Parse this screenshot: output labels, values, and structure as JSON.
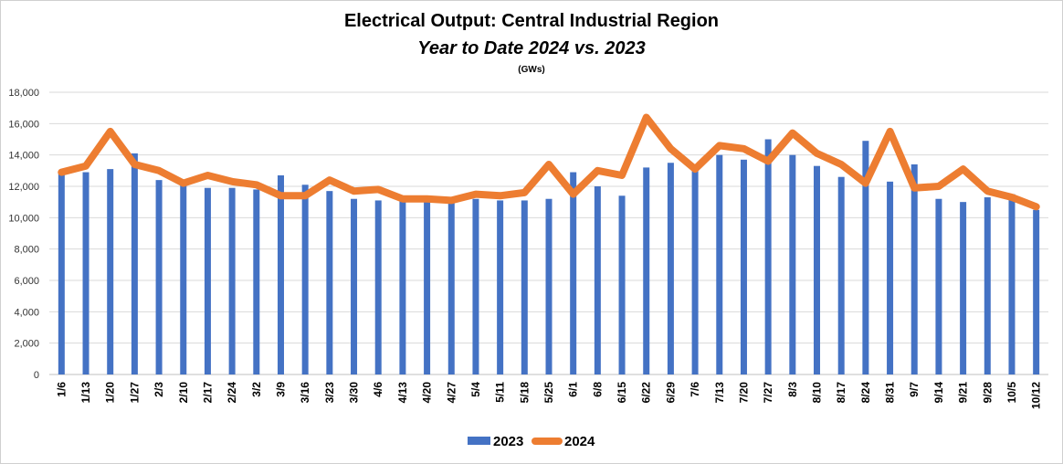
{
  "colors": {
    "bar_2023": "#4472C4",
    "line_2024": "#ED7D31",
    "grid": "#d9d9d9"
  },
  "chart_data": {
    "type": "bar",
    "title": "Electrical Output:  Central Industrial Region",
    "subtitle": "Year to Date 2024 vs. 2023",
    "unit_label": "(GWs)",
    "xlabel": "",
    "ylabel": "",
    "ylim": [
      0,
      18000
    ],
    "y_ticks": [
      0,
      2000,
      4000,
      6000,
      8000,
      10000,
      12000,
      14000,
      16000,
      18000
    ],
    "y_tick_labels": [
      "0",
      "2,000",
      "4,000",
      "6,000",
      "8,000",
      "10,000",
      "12,000",
      "14,000",
      "16,000",
      "18,000"
    ],
    "grid": true,
    "legend_position": "bottom",
    "categories": [
      "1/6",
      "1/13",
      "1/20",
      "1/27",
      "2/3",
      "2/10",
      "2/17",
      "2/24",
      "3/2",
      "3/9",
      "3/16",
      "3/23",
      "3/30",
      "4/6",
      "4/13",
      "4/20",
      "4/27",
      "5/4",
      "5/11",
      "5/18",
      "5/25",
      "6/1",
      "6/8",
      "6/15",
      "6/22",
      "6/29",
      "7/6",
      "7/13",
      "7/20",
      "7/27",
      "8/3",
      "8/10",
      "8/17",
      "8/24",
      "8/31",
      "9/7",
      "9/14",
      "9/21",
      "9/28",
      "10/5",
      "10/12"
    ],
    "series": [
      {
        "name": "2023",
        "type": "bar",
        "values": [
          12900,
          12900,
          13100,
          14100,
          12400,
          12100,
          11900,
          11900,
          11800,
          12700,
          12100,
          11700,
          11200,
          11100,
          11100,
          11000,
          11000,
          11200,
          11100,
          11100,
          11200,
          12900,
          12000,
          11400,
          13200,
          13500,
          13000,
          14000,
          13700,
          15000,
          14000,
          13300,
          12600,
          14900,
          12300,
          13400,
          11200,
          11000,
          11300,
          11500,
          10500
        ]
      },
      {
        "name": "2024",
        "type": "line",
        "values": [
          12900,
          13300,
          15500,
          13400,
          13000,
          12200,
          12700,
          12300,
          12100,
          11400,
          11400,
          12400,
          11700,
          11800,
          11200,
          11200,
          11100,
          11500,
          11400,
          11600,
          13400,
          11500,
          13000,
          12700,
          16400,
          14400,
          13100,
          14600,
          14400,
          13600,
          15400,
          14100,
          13400,
          12200,
          15500,
          11900,
          12000,
          13100,
          11700,
          11300,
          10700
        ]
      }
    ]
  }
}
